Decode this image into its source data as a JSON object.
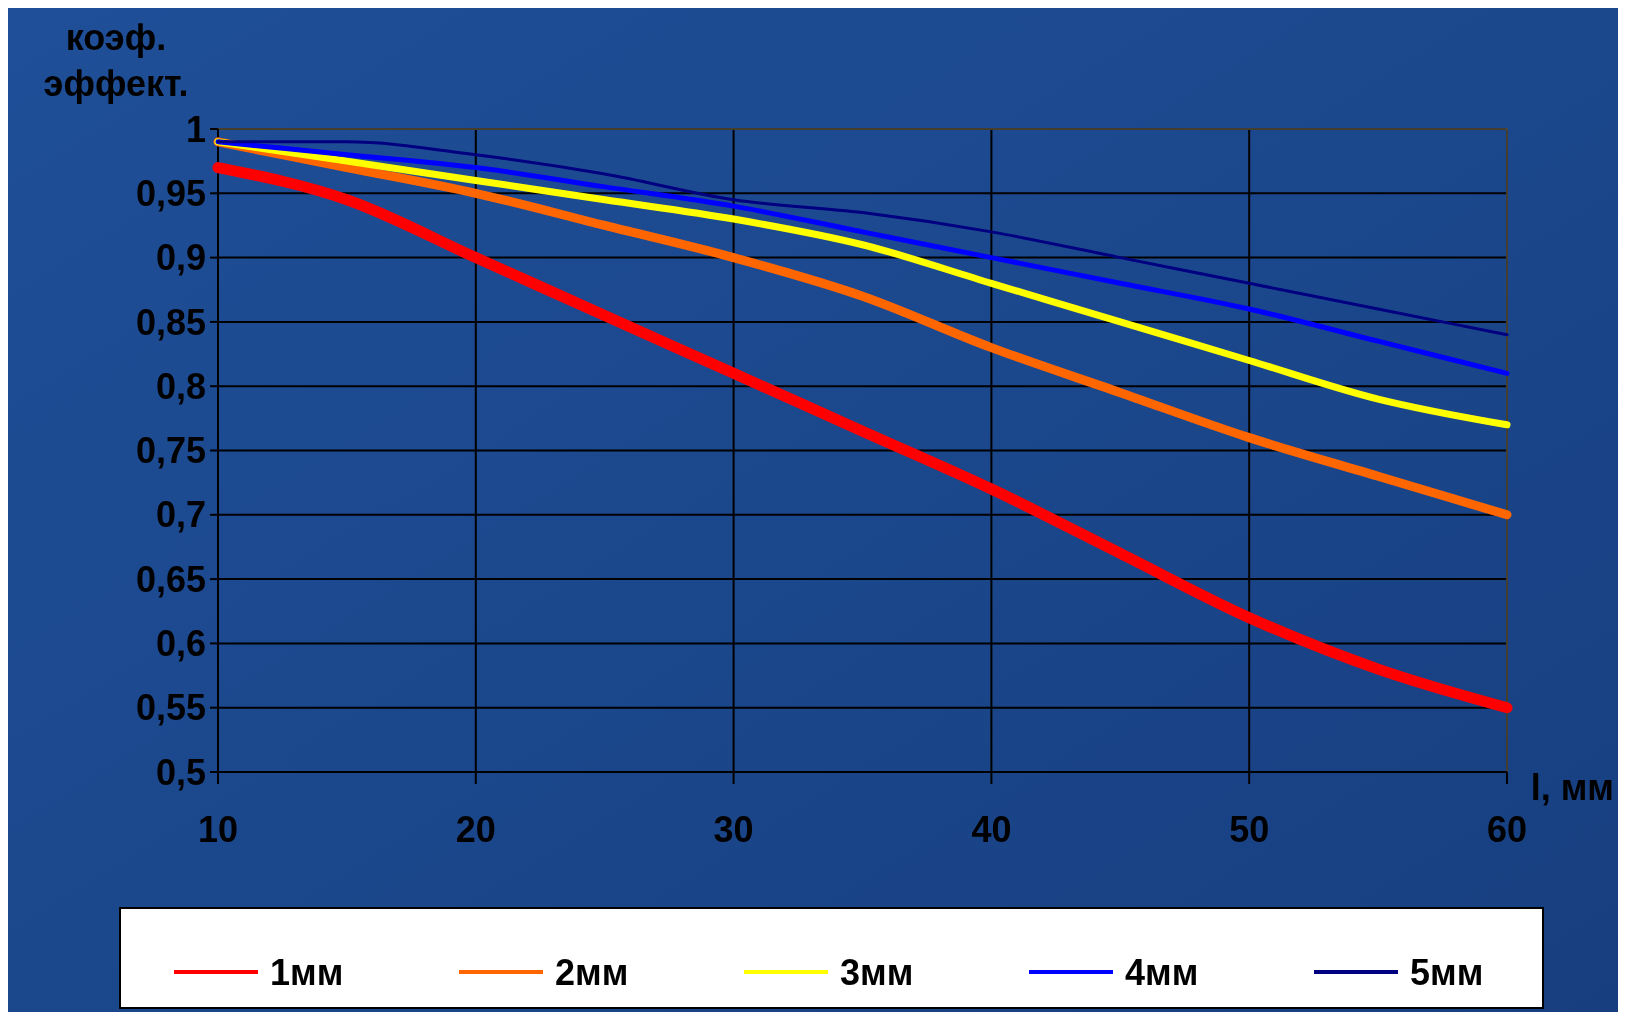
{
  "chart_data": {
    "type": "line",
    "xlabel": "l, мм",
    "ylabel": "коэф. эффект.",
    "x": [
      10,
      15,
      20,
      25,
      30,
      35,
      40,
      45,
      50,
      55,
      60
    ],
    "xlim": [
      10,
      60
    ],
    "xticks": [
      10,
      20,
      30,
      40,
      50,
      60
    ],
    "ylim": [
      0.5,
      1
    ],
    "yticks": [
      {
        "value": 0.5,
        "label": "0,5"
      },
      {
        "value": 0.55,
        "label": "0,55"
      },
      {
        "value": 0.6,
        "label": "0,6"
      },
      {
        "value": 0.65,
        "label": "0,65"
      },
      {
        "value": 0.7,
        "label": "0,7"
      },
      {
        "value": 0.75,
        "label": "0,75"
      },
      {
        "value": 0.8,
        "label": "0,8"
      },
      {
        "value": 0.85,
        "label": "0,85"
      },
      {
        "value": 0.9,
        "label": "0,9"
      },
      {
        "value": 0.95,
        "label": "0,95"
      },
      1
    ],
    "grid": true,
    "legend": "bottom",
    "marker": "none",
    "line_style": "solid",
    "series": [
      {
        "name": "1мм",
        "color": "#ff0000",
        "values": [
          0.97,
          0.945,
          0.9,
          0.855,
          0.81,
          0.765,
          0.72,
          0.67,
          0.62,
          0.58,
          0.55
        ]
      },
      {
        "name": "2мм",
        "color": "#ff6600",
        "values": [
          0.99,
          0.97,
          0.95,
          0.925,
          0.9,
          0.87,
          0.83,
          0.795,
          0.76,
          0.73,
          0.7
        ]
      },
      {
        "name": "3мм",
        "color": "#ffff00",
        "values": [
          0.99,
          0.975,
          0.96,
          0.945,
          0.93,
          0.91,
          0.88,
          0.85,
          0.82,
          0.79,
          0.77
        ]
      },
      {
        "name": "4мм",
        "color": "#0000ff",
        "values": [
          0.99,
          0.98,
          0.97,
          0.955,
          0.94,
          0.92,
          0.9,
          0.88,
          0.86,
          0.835,
          0.81
        ]
      },
      {
        "name": "5мм",
        "color": "#000080",
        "values": [
          0.99,
          0.99,
          0.98,
          0.965,
          0.945,
          0.935,
          0.92,
          0.9,
          0.88,
          0.86,
          0.84
        ]
      }
    ]
  }
}
